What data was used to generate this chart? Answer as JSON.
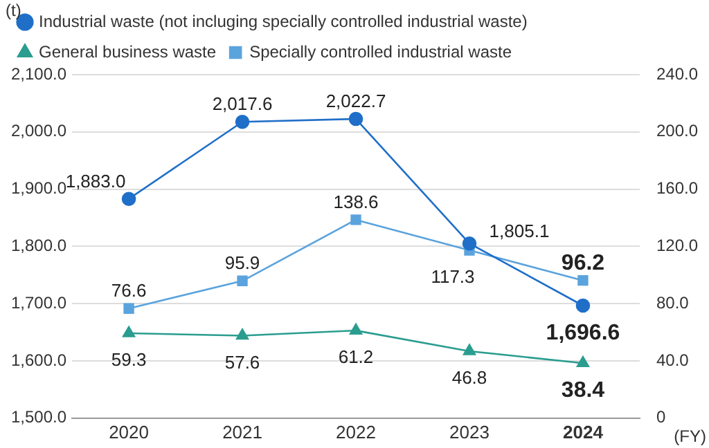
{
  "chart_data": {
    "type": "line",
    "ylabel": "(t)",
    "xlabel": "(FY)",
    "categories": [
      "2020",
      "2021",
      "2022",
      "2023",
      "2024"
    ],
    "series": [
      {
        "name": "Industrial waste (not incluging specially controlled industrial waste)",
        "color": "#1f6fc8",
        "marker": "circle",
        "values": [
          1883.0,
          2017.6,
          2022.7,
          1805.1,
          1696.6
        ],
        "value_labels": [
          "1,883.0",
          "2,017.6",
          "2,022.7",
          "1,805.1",
          "1,696.6"
        ]
      },
      {
        "name": "General business waste",
        "color": "#2a9d8f",
        "marker": "triangle",
        "axis": "y2",
        "values": [
          59.3,
          57.6,
          61.2,
          46.8,
          38.4
        ],
        "value_labels": [
          "59.3",
          "57.6",
          "61.2",
          "46.8",
          "38.4"
        ]
      },
      {
        "name": "Specially controlled industrial waste",
        "color": "#5ba3dd",
        "marker": "square",
        "axis": "y2",
        "values": [
          76.6,
          95.9,
          138.6,
          117.3,
          96.2
        ],
        "value_labels": [
          "76.6",
          "95.9",
          "138.6",
          "117.3",
          "96.2"
        ]
      }
    ],
    "ylim": [
      1500,
      2100
    ],
    "yticks": [
      {
        "value": 1500,
        "label": "1,500.0"
      },
      {
        "value": 1600,
        "label": "1,600.0"
      },
      {
        "value": 1700,
        "label": "1,700.0"
      },
      {
        "value": 1800,
        "label": "1,800.0"
      },
      {
        "value": 1900,
        "label": "1,900.0"
      },
      {
        "value": 2000,
        "label": "2,000.0"
      },
      {
        "value": 2100,
        "label": "2,100.0"
      }
    ],
    "y2lim": [
      0,
      240
    ],
    "y2ticks": [
      {
        "value": 0,
        "label": "0"
      },
      {
        "value": 40,
        "label": "40.0"
      },
      {
        "value": 80,
        "label": "80.0"
      },
      {
        "value": 120,
        "label": "120.0"
      },
      {
        "value": 160,
        "label": "160.0"
      },
      {
        "value": 200,
        "label": "200.0"
      },
      {
        "value": 240,
        "label": "240.0"
      }
    ],
    "grid": "y",
    "legend": "top",
    "line_style": "solid"
  }
}
